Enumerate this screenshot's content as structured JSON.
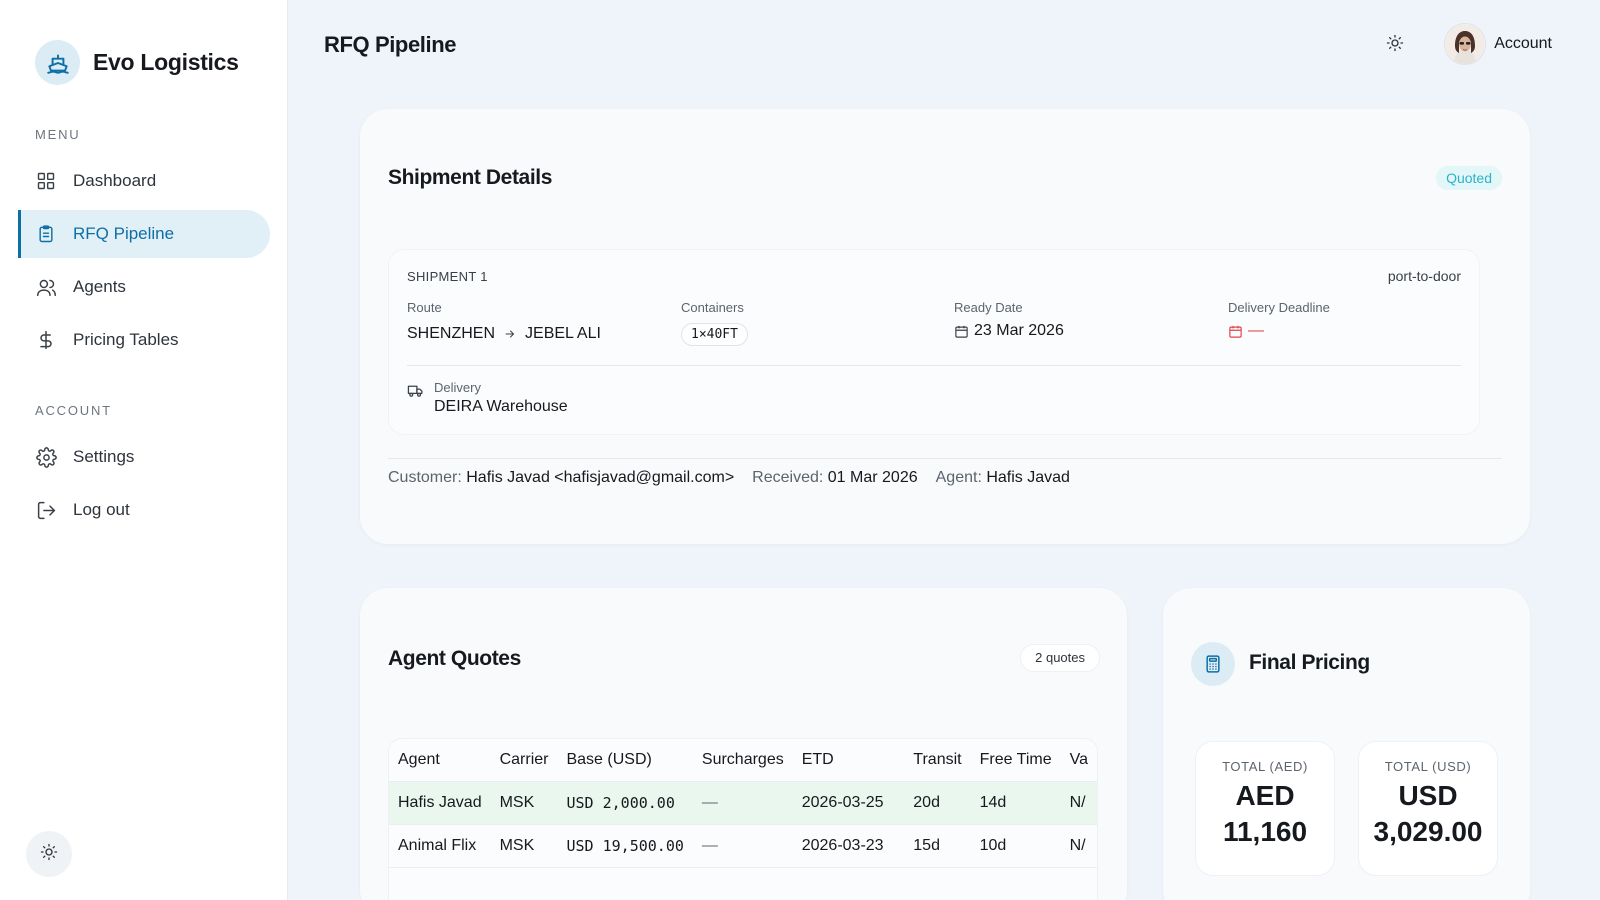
{
  "brand": {
    "name": "Evo Logistics"
  },
  "sidebar": {
    "menu_label": "MENU",
    "account_label": "ACCOUNT",
    "items": [
      {
        "label": "Dashboard",
        "icon": "grid-icon"
      },
      {
        "label": "RFQ Pipeline",
        "icon": "clipboard-icon",
        "active": true
      },
      {
        "label": "Agents",
        "icon": "users-icon"
      },
      {
        "label": "Pricing Tables",
        "icon": "dollar-icon"
      }
    ],
    "account_items": [
      {
        "label": "Settings",
        "icon": "gear-icon"
      },
      {
        "label": "Log out",
        "icon": "logout-icon"
      }
    ]
  },
  "header": {
    "title": "RFQ Pipeline",
    "account_label": "Account"
  },
  "shipment_details": {
    "title": "Shipment Details",
    "status": "Quoted",
    "shipment_label": "SHIPMENT 1",
    "mode": "port-to-door",
    "route_label": "Route",
    "origin": "SHENZHEN",
    "destination": "JEBEL ALI",
    "containers_label": "Containers",
    "containers": "1×40FT",
    "ready_date_label": "Ready Date",
    "ready_date": "23 Mar 2026",
    "deadline_label": "Delivery Deadline",
    "deadline": "—",
    "delivery_label": "Delivery",
    "delivery": "DEIRA Warehouse",
    "customer_label": "Customer:",
    "customer": "Hafis Javad <hafisjavad@gmail.com>",
    "received_label": "Received:",
    "received": "01 Mar 2026",
    "agent_label": "Agent:",
    "agent": "Hafis Javad"
  },
  "agent_quotes": {
    "title": "Agent Quotes",
    "count": "2 quotes",
    "columns": [
      "Agent",
      "Carrier",
      "Base (USD)",
      "Surcharges",
      "ETD",
      "Transit",
      "Free Time",
      "Va"
    ],
    "rows": [
      [
        "Hafis Javad",
        "MSK",
        "USD 2,000.00",
        "—",
        "2026-03-25",
        "20d",
        "14d",
        "N/"
      ],
      [
        "Animal Flix",
        "MSK",
        "USD 19,500.00",
        "—",
        "2026-03-23",
        "15d",
        "10d",
        "N/"
      ]
    ]
  },
  "final_pricing": {
    "title": "Final Pricing",
    "total_aed_label": "TOTAL (AED)",
    "total_aed_currency": "AED",
    "total_aed_value": "11,160",
    "total_usd_label": "TOTAL (USD)",
    "total_usd_currency": "USD",
    "total_usd_value": "3,029.00"
  },
  "colors": {
    "accent": "#0e6fa5",
    "status_quoted": "#2bb4c7",
    "deadline_red": "#e0444a",
    "highlight_row": "#eaf7ef"
  }
}
